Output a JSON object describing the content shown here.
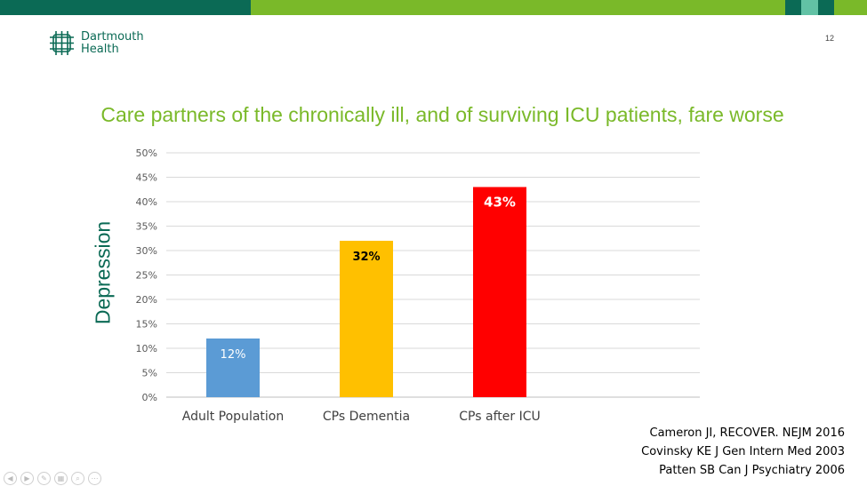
{
  "header": {
    "logo_text_line1": "Dartmouth",
    "logo_text_line2": "Health",
    "page_number": "12",
    "colors": {
      "dark_green": "#0b6a55",
      "light_green": "#7ab929",
      "mint": "#62c2a5"
    }
  },
  "slide": {
    "title": "Care partners of the chronically ill, and of surviving ICU patients, fare worse",
    "title_color": "#7ab929"
  },
  "chart_data": {
    "type": "bar",
    "categories": [
      "Adult Population",
      "CPs Dementia",
      "CPs after ICU"
    ],
    "values": [
      12,
      32,
      43
    ],
    "data_labels": [
      "12%",
      "32%",
      "43%"
    ],
    "bar_colors": [
      "#5b9bd5",
      "#ffc000",
      "#ff0000"
    ],
    "label_colors": [
      "#ffffff",
      "#000000",
      "#ffffff"
    ],
    "ylabel": "Depression",
    "ylim": [
      0,
      50
    ],
    "yticks": [
      0,
      5,
      10,
      15,
      20,
      25,
      30,
      35,
      40,
      45,
      50
    ],
    "ytick_labels": [
      "0%",
      "5%",
      "10%",
      "15%",
      "20%",
      "25%",
      "30%",
      "35%",
      "40%",
      "45%",
      "50%"
    ],
    "grid": true,
    "legend": "none"
  },
  "references": [
    "Cameron JI, RECOVER. NEJM 2016",
    "Covinsky KE J Gen Intern Med 2003",
    "Patten SB Can J Psychiatry 2006"
  ],
  "nav_icons": [
    "previous-icon",
    "next-icon",
    "pen-icon",
    "slides-icon",
    "zoom-icon",
    "more-icon"
  ]
}
